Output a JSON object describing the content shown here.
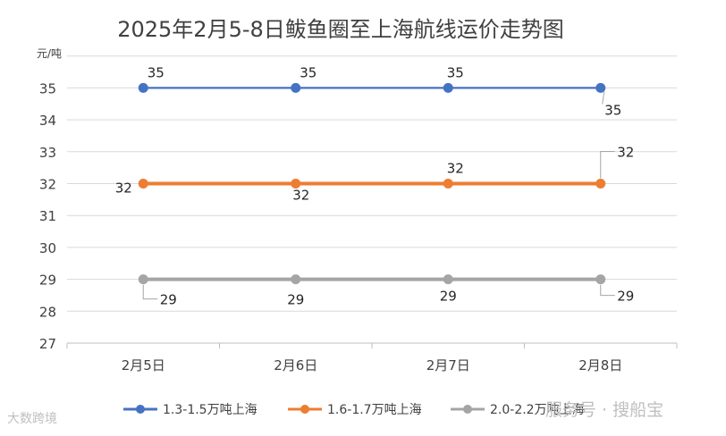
{
  "chart_data": {
    "type": "line",
    "title": "2025年2月5-8日鲅鱼圈至上海航线运价走势图",
    "ylabel": "元/吨",
    "xlabel": "",
    "categories": [
      "2月5日",
      "2月6日",
      "2月7日",
      "2月8日"
    ],
    "ylim": [
      27,
      36
    ],
    "yticks": [
      27,
      28,
      29,
      30,
      31,
      32,
      33,
      34,
      35
    ],
    "grid": true,
    "legend_position": "bottom",
    "series": [
      {
        "name": "1.3-1.5万吨上海",
        "values": [
          35,
          35,
          35,
          35
        ],
        "color": "#4472c4"
      },
      {
        "name": "1.6-1.7万吨上海",
        "values": [
          32,
          32,
          32,
          32
        ],
        "color": "#ed7d31"
      },
      {
        "name": "2.0-2.2万吨上海",
        "values": [
          29,
          29,
          29,
          29
        ],
        "color": "#a5a5a5"
      }
    ]
  },
  "watermarks": {
    "left": "大数跨境",
    "right": "服务号 · 搜船宝"
  }
}
